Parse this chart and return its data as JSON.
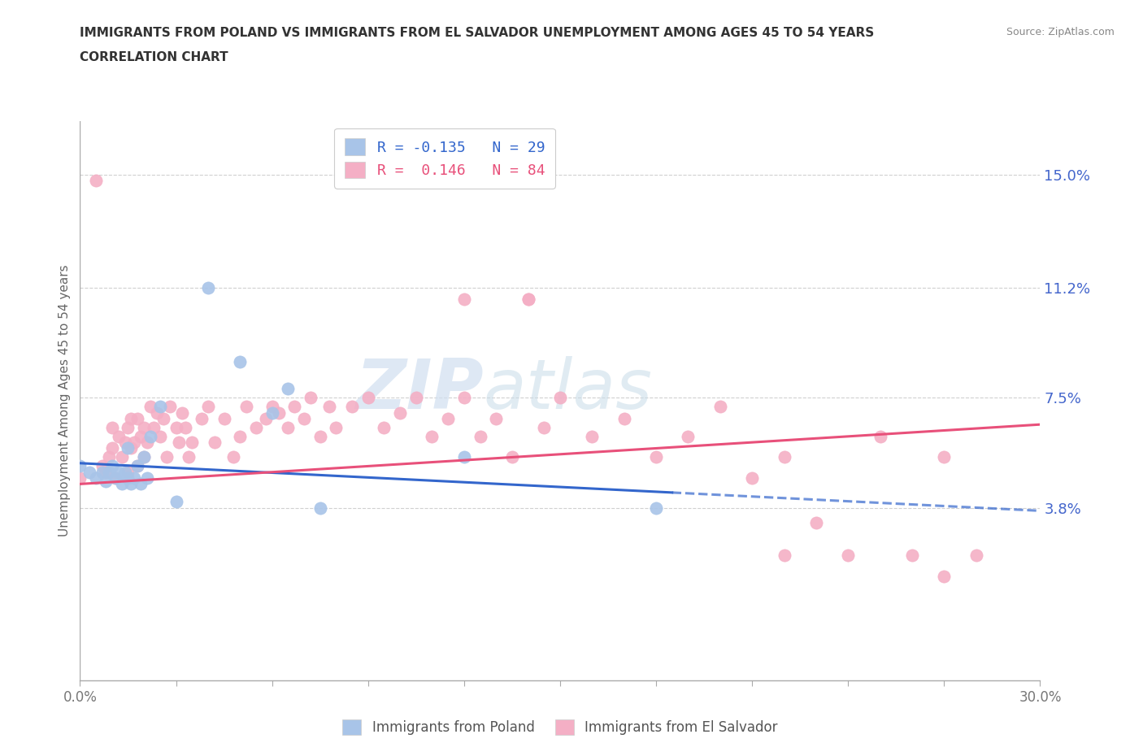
{
  "title_line1": "IMMIGRANTS FROM POLAND VS IMMIGRANTS FROM EL SALVADOR UNEMPLOYMENT AMONG AGES 45 TO 54 YEARS",
  "title_line2": "CORRELATION CHART",
  "source": "Source: ZipAtlas.com",
  "ylabel": "Unemployment Among Ages 45 to 54 years",
  "xlim": [
    0.0,
    0.3
  ],
  "ylim": [
    -0.02,
    0.168
  ],
  "yticks": [
    0.038,
    0.075,
    0.112,
    0.15
  ],
  "ytick_labels": [
    "3.8%",
    "7.5%",
    "11.2%",
    "15.0%"
  ],
  "xtick_positions": [
    0.0,
    0.03,
    0.06,
    0.09,
    0.12,
    0.15,
    0.18,
    0.21,
    0.24,
    0.27,
    0.3
  ],
  "xtick_labels_show": [
    "0.0%",
    "",
    "",
    "",
    "",
    "",
    "",
    "",
    "",
    "",
    "30.0%"
  ],
  "poland_color": "#a8c4e8",
  "salvador_color": "#f4afc5",
  "poland_line_color": "#3366cc",
  "salvador_line_color": "#e8507a",
  "poland_R": -0.135,
  "poland_N": 29,
  "salvador_R": 0.146,
  "salvador_N": 84,
  "legend_label_poland": "Immigrants from Poland",
  "legend_label_salvador": "Immigrants from El Salvador",
  "watermark_zip": "ZIP",
  "watermark_atlas": "atlas",
  "grid_color": "#d0d0d0",
  "background_color": "#ffffff",
  "poland_scatter_x": [
    0.0,
    0.003,
    0.005,
    0.007,
    0.008,
    0.009,
    0.01,
    0.011,
    0.012,
    0.013,
    0.014,
    0.015,
    0.015,
    0.016,
    0.017,
    0.018,
    0.019,
    0.02,
    0.021,
    0.022,
    0.025,
    0.03,
    0.04,
    0.05,
    0.06,
    0.065,
    0.075,
    0.12,
    0.18
  ],
  "poland_scatter_y": [
    0.052,
    0.05,
    0.048,
    0.05,
    0.047,
    0.05,
    0.052,
    0.048,
    0.05,
    0.046,
    0.05,
    0.048,
    0.058,
    0.046,
    0.048,
    0.052,
    0.046,
    0.055,
    0.048,
    0.062,
    0.072,
    0.04,
    0.112,
    0.087,
    0.07,
    0.078,
    0.038,
    0.055,
    0.038
  ],
  "salvador_scatter_x": [
    0.0,
    0.005,
    0.007,
    0.008,
    0.009,
    0.01,
    0.01,
    0.011,
    0.012,
    0.013,
    0.014,
    0.015,
    0.015,
    0.016,
    0.016,
    0.017,
    0.018,
    0.018,
    0.019,
    0.02,
    0.02,
    0.021,
    0.022,
    0.023,
    0.024,
    0.025,
    0.026,
    0.027,
    0.028,
    0.03,
    0.031,
    0.032,
    0.033,
    0.034,
    0.035,
    0.038,
    0.04,
    0.042,
    0.045,
    0.048,
    0.05,
    0.052,
    0.055,
    0.058,
    0.06,
    0.062,
    0.065,
    0.067,
    0.07,
    0.072,
    0.075,
    0.078,
    0.08,
    0.085,
    0.09,
    0.095,
    0.1,
    0.105,
    0.11,
    0.115,
    0.12,
    0.125,
    0.13,
    0.135,
    0.14,
    0.145,
    0.15,
    0.16,
    0.17,
    0.18,
    0.19,
    0.2,
    0.21,
    0.22,
    0.23,
    0.24,
    0.25,
    0.26,
    0.27,
    0.28,
    0.12,
    0.14,
    0.22,
    0.27
  ],
  "salvador_scatter_y": [
    0.048,
    0.148,
    0.052,
    0.05,
    0.055,
    0.058,
    0.065,
    0.048,
    0.062,
    0.055,
    0.06,
    0.065,
    0.05,
    0.068,
    0.058,
    0.06,
    0.068,
    0.052,
    0.062,
    0.065,
    0.055,
    0.06,
    0.072,
    0.065,
    0.07,
    0.062,
    0.068,
    0.055,
    0.072,
    0.065,
    0.06,
    0.07,
    0.065,
    0.055,
    0.06,
    0.068,
    0.072,
    0.06,
    0.068,
    0.055,
    0.062,
    0.072,
    0.065,
    0.068,
    0.072,
    0.07,
    0.065,
    0.072,
    0.068,
    0.075,
    0.062,
    0.072,
    0.065,
    0.072,
    0.075,
    0.065,
    0.07,
    0.075,
    0.062,
    0.068,
    0.075,
    0.062,
    0.068,
    0.055,
    0.108,
    0.065,
    0.075,
    0.062,
    0.068,
    0.055,
    0.062,
    0.072,
    0.048,
    0.055,
    0.033,
    0.022,
    0.062,
    0.022,
    0.015,
    0.022,
    0.108,
    0.108,
    0.022,
    0.055
  ]
}
